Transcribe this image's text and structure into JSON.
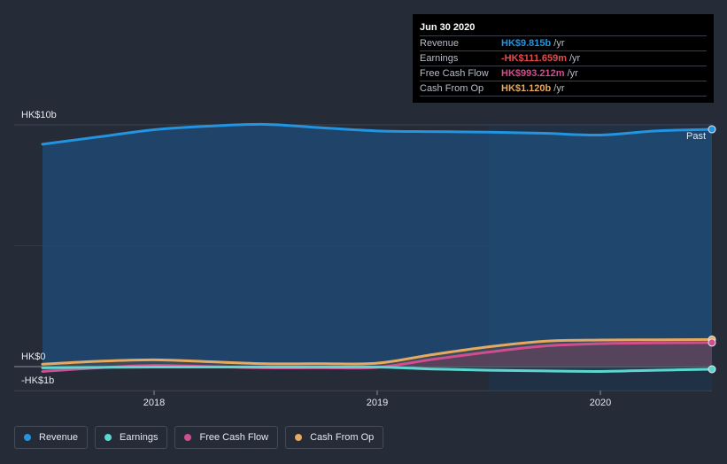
{
  "chart_data": {
    "type": "area",
    "x_ticks": [
      "2018",
      "2019",
      "2020"
    ],
    "y_axis_labels": [
      "HK$10b",
      "HK$0",
      "-HK$1b"
    ],
    "ylim": [
      -1,
      10
    ],
    "past_label": "Past",
    "x_domain": [
      2017.5,
      2020.5
    ],
    "series": [
      {
        "name": "Revenue",
        "color": "#2394df",
        "x": [
          2017.5,
          2017.75,
          2018.0,
          2018.25,
          2018.5,
          2018.75,
          2019.0,
          2019.25,
          2019.5,
          2019.75,
          2020.0,
          2020.25,
          2020.5
        ],
        "values": [
          9.2,
          9.5,
          9.8,
          9.95,
          10.02,
          9.88,
          9.75,
          9.72,
          9.7,
          9.65,
          9.58,
          9.75,
          9.815
        ]
      },
      {
        "name": "Earnings",
        "color": "#5cd6d0",
        "x": [
          2017.5,
          2017.75,
          2018.0,
          2018.25,
          2018.5,
          2018.75,
          2019.0,
          2019.25,
          2019.5,
          2019.75,
          2020.0,
          2020.25,
          2020.5
        ],
        "values": [
          -0.05,
          -0.03,
          -0.02,
          -0.02,
          -0.02,
          -0.02,
          -0.02,
          -0.1,
          -0.15,
          -0.18,
          -0.2,
          -0.15,
          -0.11
        ]
      },
      {
        "name": "Free Cash Flow",
        "color": "#d04e8f",
        "x": [
          2017.5,
          2017.75,
          2018.0,
          2018.25,
          2018.5,
          2018.75,
          2019.0,
          2019.25,
          2019.5,
          2019.75,
          2020.0,
          2020.25,
          2020.5
        ],
        "values": [
          -0.2,
          -0.05,
          0.05,
          0.0,
          -0.05,
          -0.05,
          -0.03,
          0.3,
          0.6,
          0.85,
          0.95,
          0.98,
          0.993
        ]
      },
      {
        "name": "Cash From Op",
        "color": "#e5a960",
        "x": [
          2017.5,
          2017.75,
          2018.0,
          2018.25,
          2018.5,
          2018.75,
          2019.0,
          2019.25,
          2019.5,
          2019.75,
          2020.0,
          2020.25,
          2020.5
        ],
        "values": [
          0.1,
          0.22,
          0.28,
          0.2,
          0.12,
          0.12,
          0.14,
          0.5,
          0.82,
          1.05,
          1.1,
          1.11,
          1.12
        ]
      }
    ],
    "tooltip": {
      "date": "Jun 30 2020",
      "rows": [
        {
          "label": "Revenue",
          "value": "HK$9.815b",
          "unit": "/yr",
          "color": "#2394df"
        },
        {
          "label": "Earnings",
          "value": "-HK$111.659m",
          "unit": "/yr",
          "color": "#e64b4b"
        },
        {
          "label": "Free Cash Flow",
          "value": "HK$993.212m",
          "unit": "/yr",
          "color": "#d04e8f"
        },
        {
          "label": "Cash From Op",
          "value": "HK$1.120b",
          "unit": "/yr",
          "color": "#e5a960"
        }
      ]
    }
  },
  "legend": [
    {
      "label": "Revenue",
      "color": "#2394df"
    },
    {
      "label": "Earnings",
      "color": "#5cd6d0"
    },
    {
      "label": "Free Cash Flow",
      "color": "#d04e8f"
    },
    {
      "label": "Cash From Op",
      "color": "#e5a960"
    }
  ]
}
